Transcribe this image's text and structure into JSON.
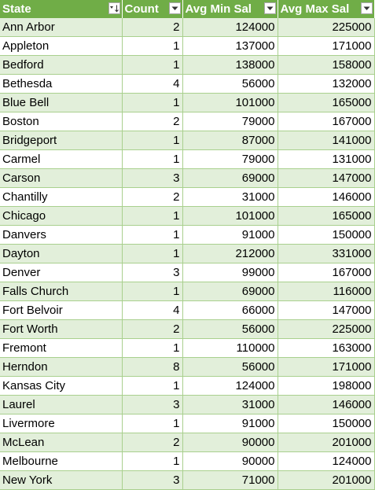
{
  "table": {
    "headers": [
      "State",
      "Count",
      "Avg Min Sal",
      "Avg Max Sal"
    ],
    "rows": [
      {
        "state": "Ann Arbor",
        "count": "2",
        "avg_min": "124000",
        "avg_max": "225000"
      },
      {
        "state": "Appleton",
        "count": "1",
        "avg_min": "137000",
        "avg_max": "171000"
      },
      {
        "state": "Bedford",
        "count": "1",
        "avg_min": "138000",
        "avg_max": "158000"
      },
      {
        "state": "Bethesda",
        "count": "4",
        "avg_min": "56000",
        "avg_max": "132000"
      },
      {
        "state": "Blue Bell",
        "count": "1",
        "avg_min": "101000",
        "avg_max": "165000"
      },
      {
        "state": "Boston",
        "count": "2",
        "avg_min": "79000",
        "avg_max": "167000"
      },
      {
        "state": "Bridgeport",
        "count": "1",
        "avg_min": "87000",
        "avg_max": "141000"
      },
      {
        "state": "Carmel",
        "count": "1",
        "avg_min": "79000",
        "avg_max": "131000"
      },
      {
        "state": "Carson",
        "count": "3",
        "avg_min": "69000",
        "avg_max": "147000"
      },
      {
        "state": "Chantilly",
        "count": "2",
        "avg_min": "31000",
        "avg_max": "146000"
      },
      {
        "state": "Chicago",
        "count": "1",
        "avg_min": "101000",
        "avg_max": "165000"
      },
      {
        "state": "Danvers",
        "count": "1",
        "avg_min": "91000",
        "avg_max": "150000"
      },
      {
        "state": "Dayton",
        "count": "1",
        "avg_min": "212000",
        "avg_max": "331000"
      },
      {
        "state": "Denver",
        "count": "3",
        "avg_min": "99000",
        "avg_max": "167000"
      },
      {
        "state": "Falls Church",
        "count": "1",
        "avg_min": "69000",
        "avg_max": "116000"
      },
      {
        "state": "Fort Belvoir",
        "count": "4",
        "avg_min": "66000",
        "avg_max": "147000"
      },
      {
        "state": "Fort Worth",
        "count": "2",
        "avg_min": "56000",
        "avg_max": "225000"
      },
      {
        "state": "Fremont",
        "count": "1",
        "avg_min": "110000",
        "avg_max": "163000"
      },
      {
        "state": "Herndon",
        "count": "8",
        "avg_min": "56000",
        "avg_max": "171000"
      },
      {
        "state": "Kansas City",
        "count": "1",
        "avg_min": "124000",
        "avg_max": "198000"
      },
      {
        "state": "Laurel",
        "count": "3",
        "avg_min": "31000",
        "avg_max": "146000"
      },
      {
        "state": "Livermore",
        "count": "1",
        "avg_min": "91000",
        "avg_max": "150000"
      },
      {
        "state": "McLean",
        "count": "2",
        "avg_min": "90000",
        "avg_max": "201000"
      },
      {
        "state": "Melbourne",
        "count": "1",
        "avg_min": "90000",
        "avg_max": "124000"
      },
      {
        "state": "New York",
        "count": "3",
        "avg_min": "71000",
        "avg_max": "201000"
      }
    ]
  },
  "colors": {
    "header_bg": "#70ad47",
    "band": "#e2efda",
    "border": "#a9d08e"
  },
  "icons": {
    "sorted_filter": "sort-filter-icon",
    "filter": "filter-dropdown-icon"
  }
}
